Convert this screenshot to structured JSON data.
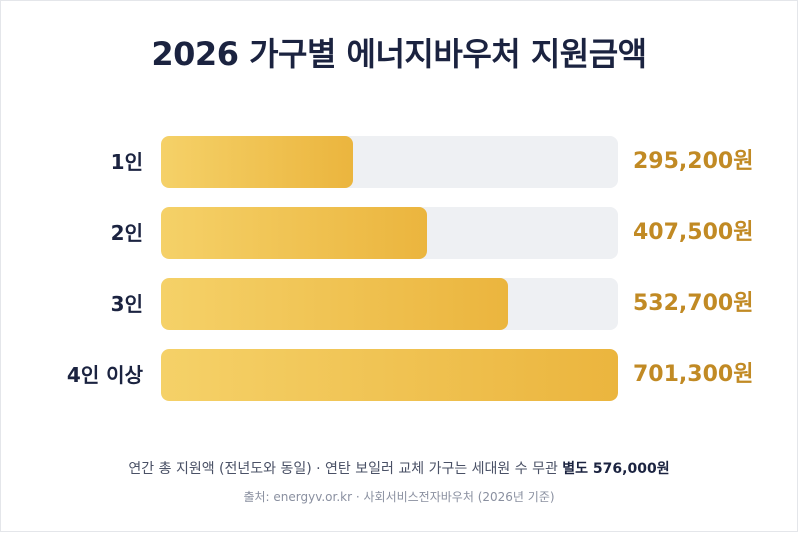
{
  "header": {
    "title": "2026 가구별 에너지바우처 지원금액"
  },
  "chart_data": {
    "type": "bar",
    "orientation": "horizontal",
    "title": "2026 가구별 에너지바우처 지원금액",
    "categories": [
      "1인",
      "2인",
      "3인",
      "4인 이상"
    ],
    "values": [
      295200,
      407500,
      532700,
      701300
    ],
    "value_labels": [
      "295,200원",
      "407,500원",
      "532,700원",
      "701,300원"
    ],
    "xlim": [
      0,
      701300
    ],
    "grid": false,
    "colors": {
      "bar_start": "#f5d168",
      "bar_end": "#ebb53e",
      "track": "#eef0f3",
      "value_text": "#c18a24"
    }
  },
  "footer": {
    "note_main": "연간 총 지원액 (전년도와 동일) · 연탄 보일러 교체 가구는 세대원 수 무관 ",
    "note_bold": "별도 576,000원",
    "source": "출처: energyv.or.kr · 사회서비스전자바우처 (2026년 기준)"
  }
}
